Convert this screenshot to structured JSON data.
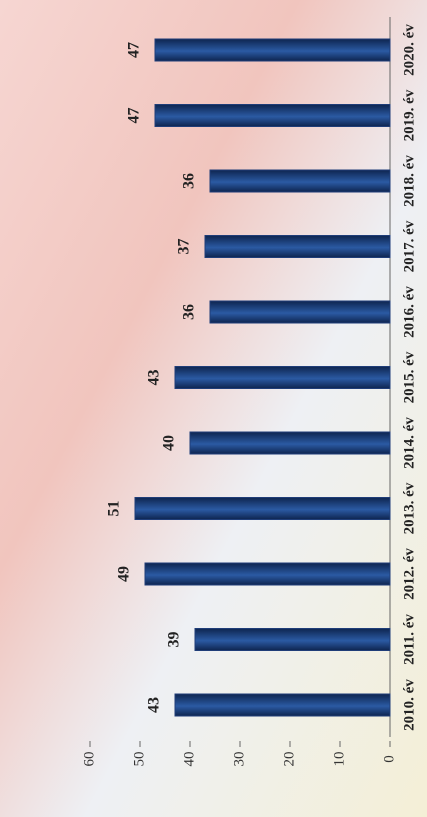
{
  "chart_data": {
    "type": "bar",
    "categories": [
      "2010. év",
      "2011. év",
      "2012. év",
      "2013. év",
      "2014. év",
      "2015. év",
      "2016. év",
      "2017. év",
      "2018. év",
      "2019. év",
      "2020. év"
    ],
    "values": [
      43,
      39,
      49,
      51,
      40,
      43,
      36,
      37,
      36,
      47,
      47
    ],
    "color": "#1f3d78",
    "ylim": [
      0,
      60
    ],
    "yticks": [
      0,
      10,
      20,
      30,
      40,
      50,
      60
    ]
  }
}
